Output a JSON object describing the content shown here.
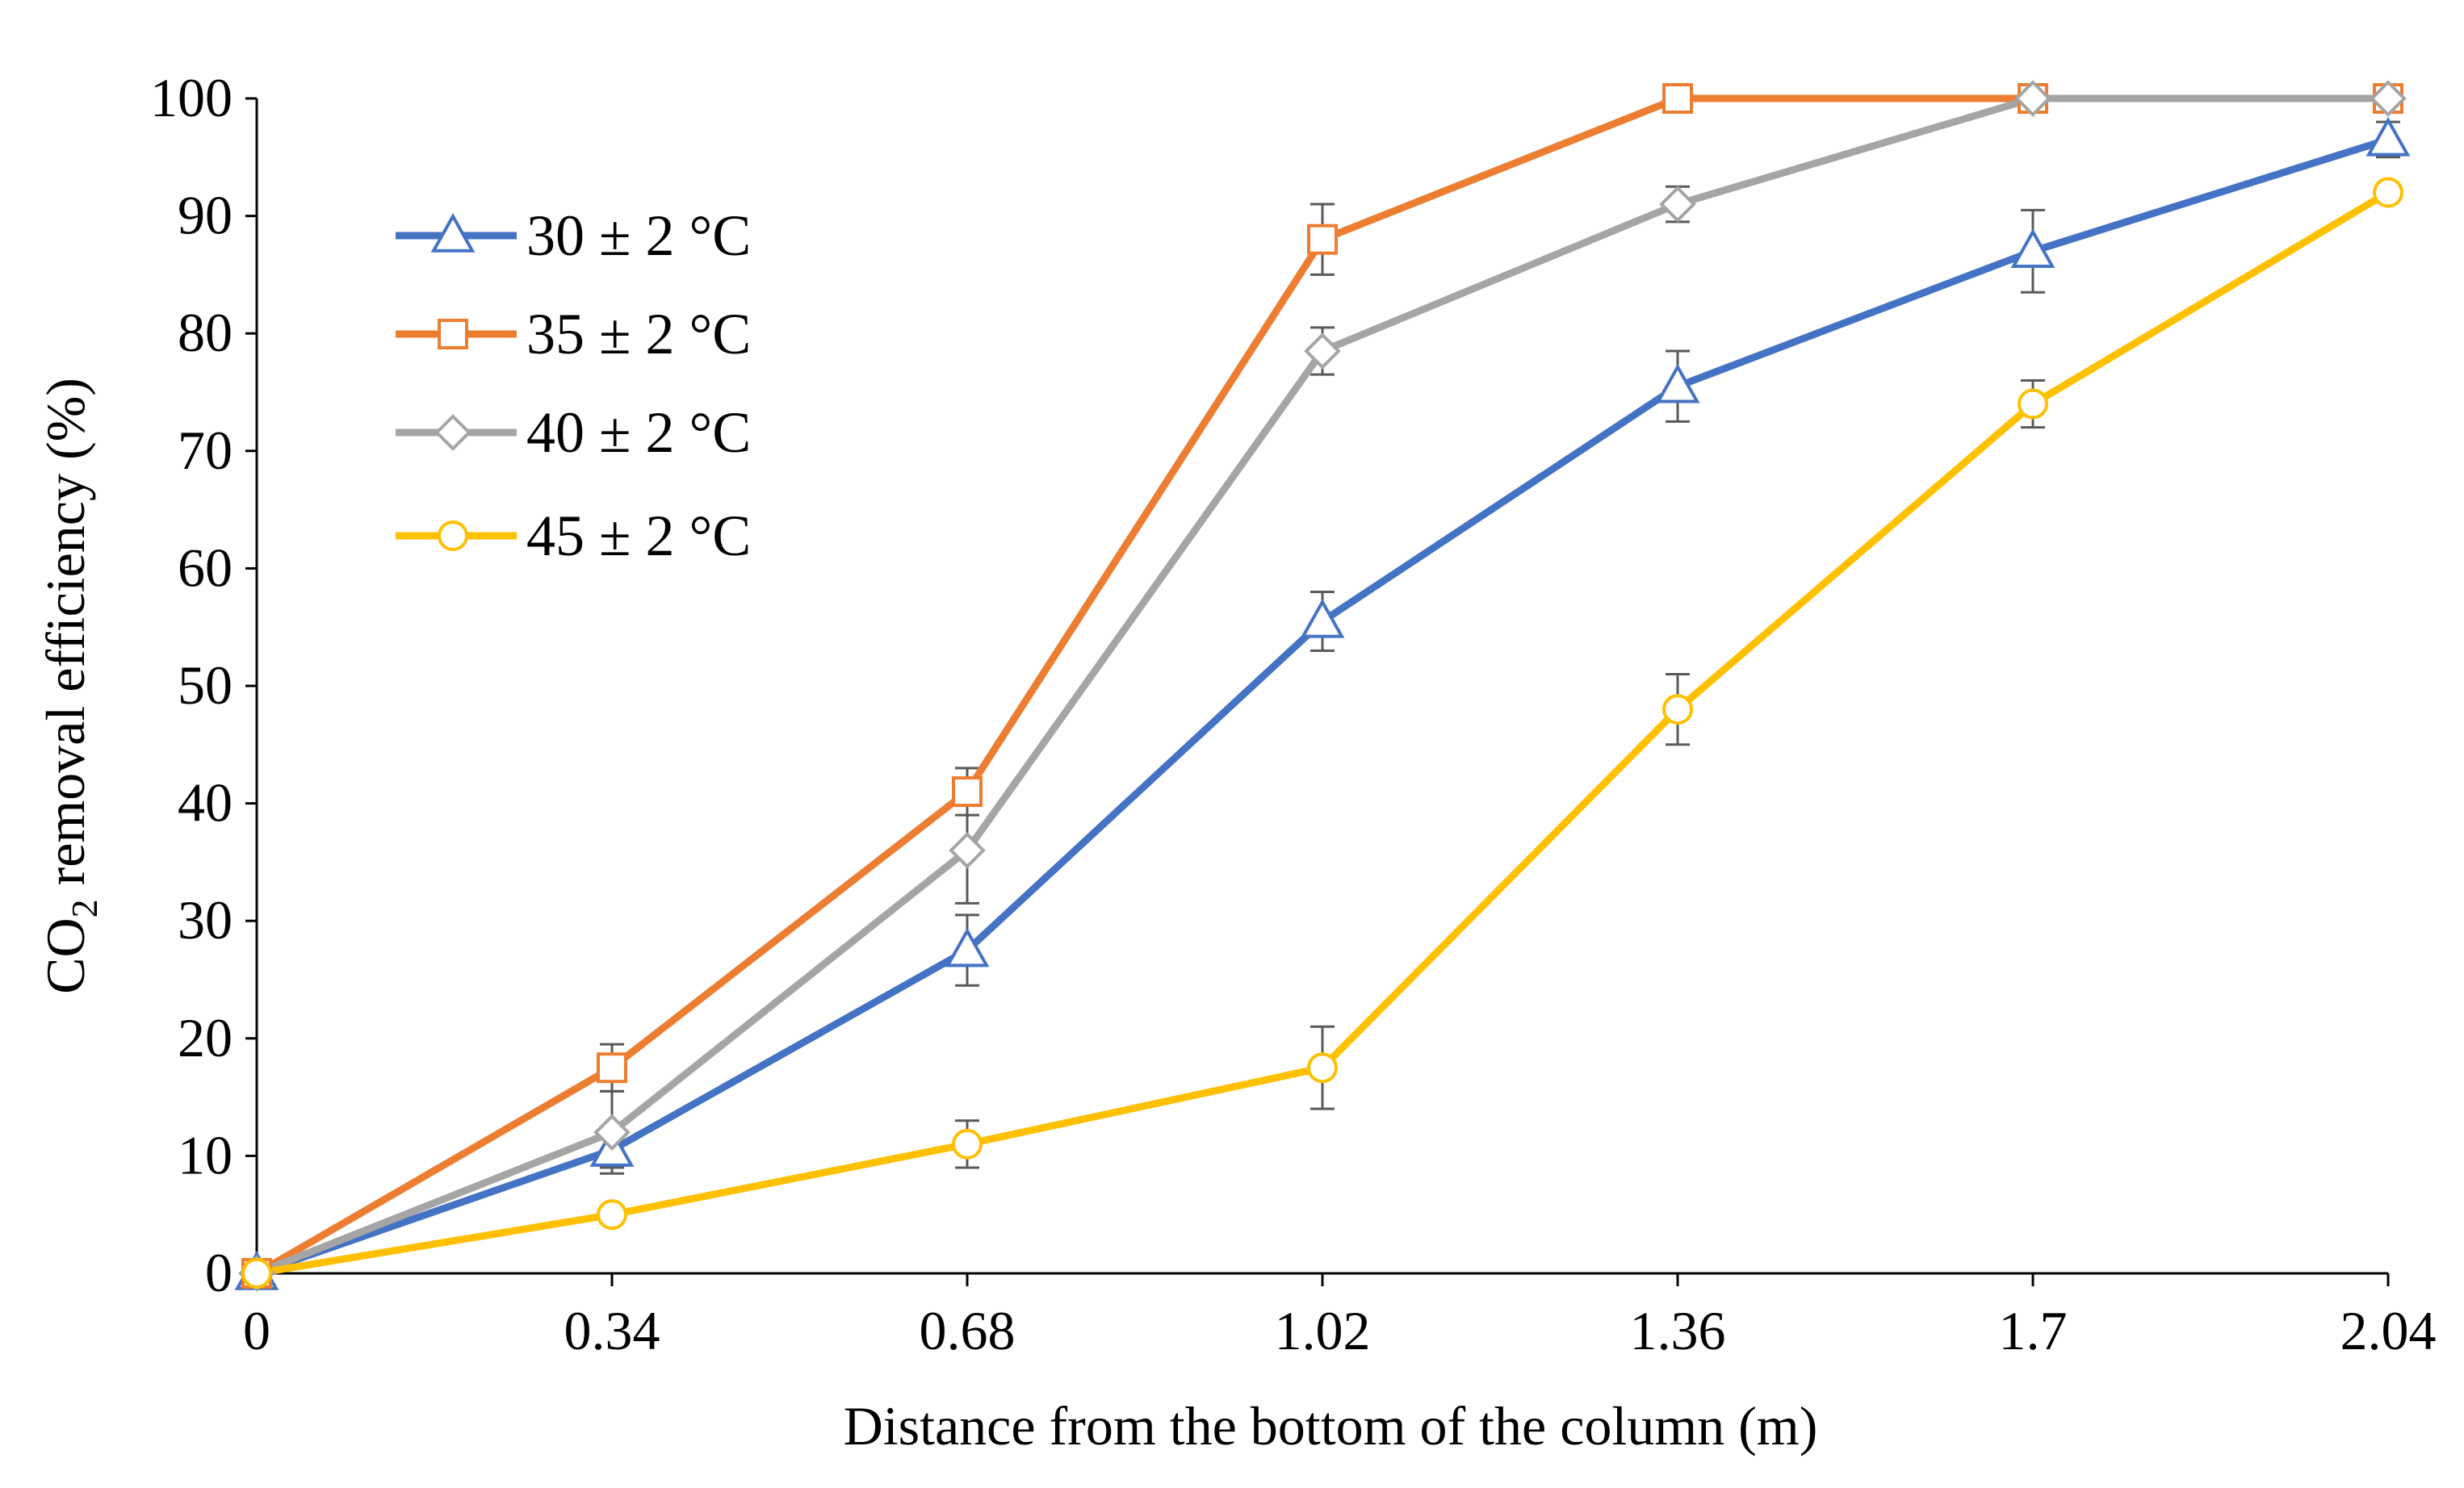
{
  "chart_data": {
    "type": "line",
    "title": "",
    "xlabel": "Distance from the bottom of the column (m)",
    "ylabel": {
      "prefix": "CO",
      "subscript": "2",
      "suffix": " removal efficiency (%)"
    },
    "x": [
      0,
      0.34,
      0.68,
      1.02,
      1.36,
      1.7,
      2.04
    ],
    "x_tick_labels": [
      "0",
      "0.34",
      "0.68",
      "1.02",
      "1.36",
      "1.7",
      "2.04"
    ],
    "ylim": [
      0,
      100
    ],
    "y_ticks": [
      0,
      10,
      20,
      30,
      40,
      50,
      60,
      70,
      80,
      90,
      100
    ],
    "y_tick_labels": [
      "0",
      "10",
      "20",
      "30",
      "40",
      "50",
      "60",
      "70",
      "80",
      "90",
      "100"
    ],
    "grid": false,
    "legend_position": "top-left",
    "series": [
      {
        "name": "30 ± 2 °C",
        "color": "#4472C4",
        "marker": "triangle",
        "values": [
          0,
          10.5,
          27.5,
          55.5,
          75.5,
          87,
          96.5
        ],
        "errors": [
          0,
          1.5,
          3.0,
          2.5,
          3.0,
          3.5,
          1.5
        ]
      },
      {
        "name": "35 ± 2 °C",
        "color": "#ED7D31",
        "marker": "square",
        "values": [
          0,
          17.5,
          41,
          88,
          100,
          100,
          100
        ],
        "errors": [
          0,
          2.0,
          2.0,
          3.0,
          0,
          0,
          0
        ]
      },
      {
        "name": "40 ± 2 °C",
        "color": "#A5A5A5",
        "marker": "diamond",
        "values": [
          0,
          12,
          36,
          78.5,
          91,
          100,
          100
        ],
        "errors": [
          0,
          3.5,
          4.5,
          2.0,
          1.5,
          0,
          0
        ]
      },
      {
        "name": "45 ± 2 °C",
        "color": "#FFC000",
        "marker": "circle",
        "values": [
          0,
          5,
          11,
          17.5,
          48,
          74,
          92
        ],
        "errors": [
          0,
          0,
          2.0,
          3.5,
          3.0,
          2.0,
          0
        ]
      }
    ]
  }
}
